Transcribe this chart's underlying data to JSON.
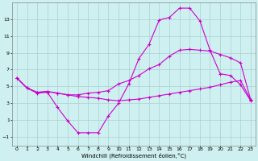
{
  "xlabel": "Windchill (Refroidissement éolien,°C)",
  "background_color": "#cff0f0",
  "grid_color": "#aacfcf",
  "line_color": "#cc00cc",
  "xlim": [
    -0.5,
    23.5
  ],
  "ylim": [
    -2,
    15
  ],
  "xticks": [
    0,
    1,
    2,
    3,
    4,
    5,
    6,
    7,
    8,
    9,
    10,
    11,
    12,
    13,
    14,
    15,
    16,
    17,
    18,
    19,
    20,
    21,
    22,
    23
  ],
  "yticks": [
    -1,
    1,
    3,
    5,
    7,
    9,
    11,
    13
  ],
  "series_peak_x": [
    0,
    1,
    2,
    3,
    4,
    5,
    6,
    7,
    8,
    9,
    10,
    11,
    12,
    13,
    14,
    15,
    16,
    17,
    18,
    19,
    20,
    21,
    22,
    23
  ],
  "series_peak_y": [
    6.0,
    4.8,
    4.2,
    4.3,
    2.5,
    0.9,
    -0.5,
    -0.5,
    -0.5,
    1.5,
    3.0,
    5.3,
    8.3,
    10.0,
    12.9,
    13.2,
    14.3,
    14.3,
    12.8,
    9.3,
    6.5,
    6.3,
    5.2,
    3.3
  ],
  "series_upper_x": [
    0,
    1,
    2,
    3,
    4,
    5,
    6,
    7,
    8,
    9,
    10,
    11,
    12,
    13,
    14,
    15,
    16,
    17,
    18,
    19,
    20,
    21,
    22,
    23
  ],
  "series_upper_y": [
    6.0,
    4.8,
    4.3,
    4.4,
    4.2,
    4.0,
    4.0,
    4.2,
    4.3,
    4.5,
    5.3,
    5.7,
    6.3,
    7.1,
    7.6,
    8.6,
    9.3,
    9.4,
    9.3,
    9.2,
    8.8,
    8.4,
    7.8,
    3.4
  ],
  "series_lower_x": [
    0,
    1,
    2,
    3,
    4,
    5,
    6,
    7,
    8,
    9,
    10,
    11,
    12,
    13,
    14,
    15,
    16,
    17,
    18,
    19,
    20,
    21,
    22,
    23
  ],
  "series_lower_y": [
    6.0,
    4.8,
    4.3,
    4.4,
    4.2,
    4.0,
    3.8,
    3.7,
    3.6,
    3.4,
    3.3,
    3.4,
    3.5,
    3.7,
    3.9,
    4.1,
    4.3,
    4.5,
    4.7,
    4.9,
    5.2,
    5.5,
    5.7,
    3.4
  ]
}
